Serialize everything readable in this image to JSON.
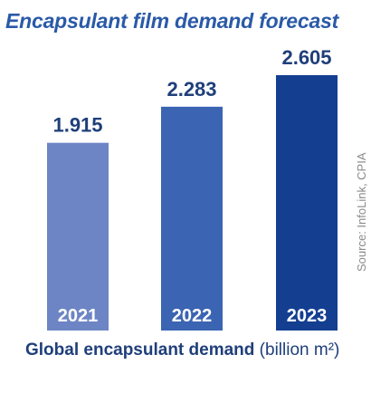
{
  "title": "Encapsulant film demand forecast",
  "xlabel_bold": "Global encapsulant demand",
  "xlabel_unit": "(billion m²)",
  "source": "Source: InfoLink, CPIA",
  "colors": [
    "#6d85c4",
    "#3b64b2",
    "#143f91"
  ],
  "chart_data": {
    "type": "bar",
    "title": "Encapsulant film demand forecast",
    "xlabel": "Global encapsulant demand (billion m²)",
    "ylabel": "",
    "categories": [
      "2021",
      "2022",
      "2023"
    ],
    "values": [
      1.915,
      2.283,
      2.605
    ],
    "value_labels": [
      "1.915",
      "2.283",
      "2.605"
    ],
    "ylim": [
      0,
      3.2
    ],
    "grid": false
  }
}
